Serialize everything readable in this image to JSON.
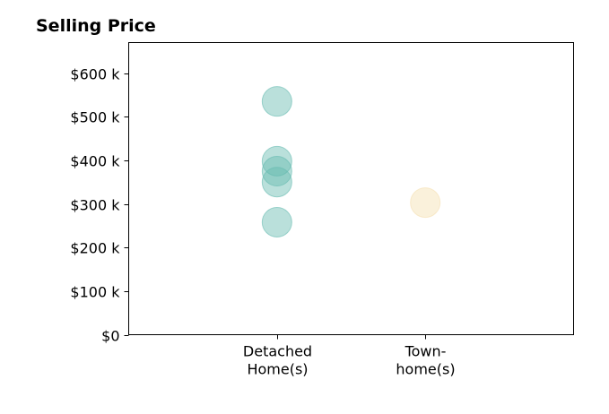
{
  "chart_data": {
    "type": "scatter",
    "title": "Selling Price",
    "xlabel": "",
    "ylabel": "",
    "categories": [
      [
        "Detached",
        "Home(s)"
      ],
      [
        "Town-",
        "home(s)"
      ]
    ],
    "x_range": [
      -1,
      2
    ],
    "ylim": [
      0,
      670000
    ],
    "y_ticks": [
      0,
      100000,
      200000,
      300000,
      400000,
      500000,
      600000
    ],
    "y_tick_labels": [
      "$0",
      "$100 k",
      "$200 k",
      "$300 k",
      "$400 k",
      "$500 k",
      "$600 k"
    ],
    "grid": false,
    "legend": "none",
    "series": [
      {
        "category_index": 0,
        "color": "#66bbb0",
        "values": [
          535000,
          398000,
          375000,
          350000,
          258000
        ]
      },
      {
        "category_index": 1,
        "color": "#f5dfb0",
        "values": [
          303000
        ]
      }
    ]
  }
}
